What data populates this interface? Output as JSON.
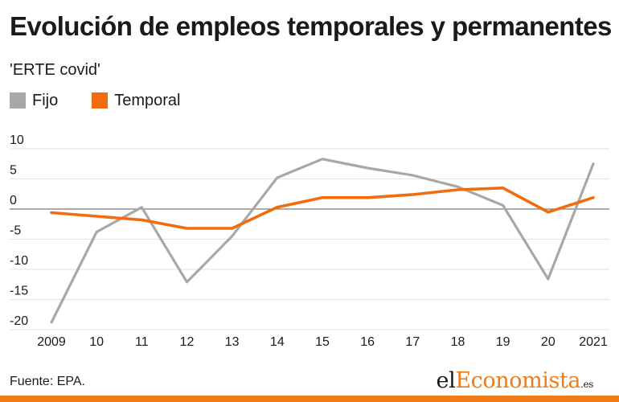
{
  "title": "Evolución de empleos temporales y permanentes",
  "subtitle": "'ERTE covid'",
  "legend": [
    {
      "label": "Fijo",
      "color": "#a8a8a8"
    },
    {
      "label": "Temporal",
      "color": "#f26c0d"
    }
  ],
  "source": "Fuente: EPA.",
  "logo": {
    "part1": "el",
    "part2": "Economista",
    "part3": ".es"
  },
  "chart_data": {
    "type": "line",
    "x": [
      "2009",
      "10",
      "11",
      "12",
      "13",
      "14",
      "15",
      "16",
      "17",
      "18",
      "19",
      "20",
      "2021"
    ],
    "series": [
      {
        "name": "Fijo",
        "color": "#a8a8a8",
        "values": [
          -18.8,
          -3.8,
          0.3,
          -12.1,
          -4.5,
          5.2,
          8.3,
          6.8,
          5.6,
          3.7,
          0.6,
          -11.6,
          7.5
        ]
      },
      {
        "name": "Temporal",
        "color": "#f26c0d",
        "values": [
          -0.6,
          -1.2,
          -1.8,
          -3.2,
          -3.2,
          0.3,
          1.9,
          1.9,
          2.4,
          3.2,
          3.5,
          -0.5,
          1.9
        ]
      }
    ],
    "yticks": [
      10,
      5,
      0,
      -5,
      -10,
      -15,
      -20
    ],
    "ylim": [
      -20,
      10
    ],
    "grid": true,
    "legend_position": "top-left"
  }
}
